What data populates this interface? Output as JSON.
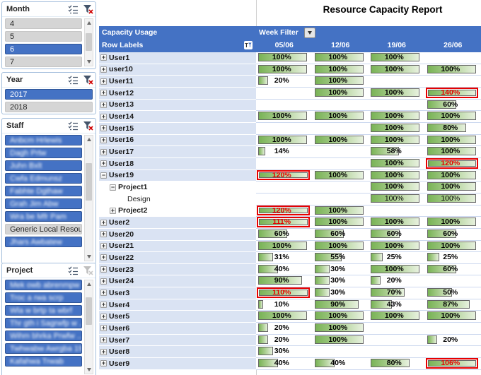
{
  "report": {
    "title": "Resource Capacity Report"
  },
  "slicers": [
    {
      "name": "Month",
      "filter_active": true,
      "has_scrollbar": true,
      "thumb": {
        "top_pct": 18,
        "height_pct": 38
      },
      "items": [
        {
          "label": "4",
          "selected": false,
          "redacted": false
        },
        {
          "label": "5",
          "selected": false,
          "redacted": false
        },
        {
          "label": "6",
          "selected": true,
          "redacted": false
        },
        {
          "label": "7",
          "selected": false,
          "redacted": false
        }
      ]
    },
    {
      "name": "Year",
      "filter_active": true,
      "has_scrollbar": false,
      "items": [
        {
          "label": "2017",
          "selected": true,
          "redacted": false
        },
        {
          "label": "2018",
          "selected": false,
          "redacted": false
        }
      ]
    },
    {
      "name": "Staff",
      "filter_active": true,
      "has_scrollbar": true,
      "thumb": {
        "top_pct": 10,
        "height_pct": 30
      },
      "items": [
        {
          "label": "Anbcm Hrlewis",
          "selected": true,
          "redacted": true
        },
        {
          "label": "Dagh Prtw",
          "selected": true,
          "redacted": true
        },
        {
          "label": "Juhn Bxlt",
          "selected": true,
          "redacted": true
        },
        {
          "label": "Cwfa Edmunsz",
          "selected": true,
          "redacted": true
        },
        {
          "label": "Fabhte Dgthaw",
          "selected": true,
          "redacted": true
        },
        {
          "label": "Grah Jim Abw",
          "selected": true,
          "redacted": true
        },
        {
          "label": "Wra be Mfr Pam",
          "selected": true,
          "redacted": true
        },
        {
          "label": "Generic Local Resou...",
          "selected": false,
          "redacted": false
        },
        {
          "label": "Jhars Awbatew",
          "selected": true,
          "redacted": true
        }
      ]
    },
    {
      "name": "Project",
      "filter_active": false,
      "has_scrollbar": true,
      "thumb": {
        "top_pct": 6,
        "height_pct": 30
      },
      "items": [
        {
          "label": "Mek owb abrenmpw",
          "selected": true,
          "redacted": true
        },
        {
          "label": "Troc a rwa scrp",
          "selected": true,
          "redacted": true
        },
        {
          "label": "Wla w brtp ta wbrf",
          "selected": true,
          "redacted": true
        },
        {
          "label": "Thr gth i Sagrwfp w ...",
          "selected": true,
          "redacted": true
        },
        {
          "label": "Wihm bhrka Prwfw ...",
          "selected": true,
          "redacted": true
        },
        {
          "label": "Twhwabw Awrgba 1994 ...",
          "selected": true,
          "redacted": true
        },
        {
          "label": "Kafahwa Trwab",
          "selected": true,
          "redacted": true
        }
      ]
    }
  ],
  "table": {
    "corner_label": "Capacity Usage",
    "week_filter_label": "Week Filter",
    "row_labels_header": "Row Labels",
    "columns": [
      "05/06",
      "12/06",
      "19/06",
      "26/06"
    ],
    "rows": [
      {
        "label": "User1",
        "level": 0,
        "toggle": "plus",
        "bold": true,
        "values": [
          100,
          100,
          100,
          null
        ]
      },
      {
        "label": "user10",
        "level": 0,
        "toggle": "plus",
        "bold": true,
        "values": [
          100,
          100,
          100,
          100
        ]
      },
      {
        "label": "User11",
        "level": 0,
        "toggle": "plus",
        "bold": true,
        "values": [
          20,
          100,
          null,
          null
        ]
      },
      {
        "label": "User12",
        "level": 0,
        "toggle": "plus",
        "bold": true,
        "values": [
          null,
          100,
          100,
          140
        ]
      },
      {
        "label": "User13",
        "level": 0,
        "toggle": "plus",
        "bold": true,
        "values": [
          null,
          null,
          null,
          60
        ]
      },
      {
        "label": "User14",
        "level": 0,
        "toggle": "plus",
        "bold": true,
        "values": [
          100,
          100,
          100,
          100
        ]
      },
      {
        "label": "User15",
        "level": 0,
        "toggle": "plus",
        "bold": true,
        "values": [
          null,
          null,
          100,
          80
        ]
      },
      {
        "label": "User16",
        "level": 0,
        "toggle": "plus",
        "bold": true,
        "values": [
          100,
          100,
          100,
          100
        ]
      },
      {
        "label": "User17",
        "level": 0,
        "toggle": "plus",
        "bold": true,
        "values": [
          14,
          null,
          58,
          100
        ]
      },
      {
        "label": "User18",
        "level": 0,
        "toggle": "plus",
        "bold": true,
        "values": [
          null,
          null,
          100,
          120
        ]
      },
      {
        "label": "User19",
        "level": 0,
        "toggle": "minus",
        "bold": true,
        "values": [
          120,
          100,
          100,
          100
        ]
      },
      {
        "label": "Project1",
        "level": 1,
        "toggle": "minus",
        "bold": true,
        "values": [
          null,
          null,
          100,
          100
        ]
      },
      {
        "label": "Design",
        "level": 2,
        "toggle": null,
        "bold": false,
        "values": [
          null,
          null,
          100,
          100
        ]
      },
      {
        "label": "Project2",
        "level": 1,
        "toggle": "plus",
        "bold": true,
        "values": [
          120,
          100,
          null,
          null
        ]
      },
      {
        "label": "User2",
        "level": 0,
        "toggle": "plus",
        "bold": true,
        "values": [
          111,
          100,
          100,
          100
        ]
      },
      {
        "label": "User20",
        "level": 0,
        "toggle": "plus",
        "bold": true,
        "values": [
          60,
          60,
          60,
          60
        ]
      },
      {
        "label": "User21",
        "level": 0,
        "toggle": "plus",
        "bold": true,
        "values": [
          100,
          100,
          100,
          100
        ]
      },
      {
        "label": "User22",
        "level": 0,
        "toggle": "plus",
        "bold": true,
        "values": [
          31,
          55,
          25,
          25
        ]
      },
      {
        "label": "User23",
        "level": 0,
        "toggle": "plus",
        "bold": true,
        "values": [
          40,
          30,
          100,
          60
        ]
      },
      {
        "label": "User24",
        "level": 0,
        "toggle": "plus",
        "bold": true,
        "values": [
          90,
          30,
          20,
          null
        ]
      },
      {
        "label": "User3",
        "level": 0,
        "toggle": "plus",
        "bold": true,
        "values": [
          110,
          30,
          70,
          50
        ]
      },
      {
        "label": "User4",
        "level": 0,
        "toggle": "plus",
        "bold": true,
        "values": [
          10,
          90,
          43,
          87
        ]
      },
      {
        "label": "User5",
        "level": 0,
        "toggle": "plus",
        "bold": true,
        "values": [
          100,
          100,
          100,
          100
        ]
      },
      {
        "label": "User6",
        "level": 0,
        "toggle": "plus",
        "bold": true,
        "values": [
          20,
          100,
          null,
          null
        ]
      },
      {
        "label": "User7",
        "level": 0,
        "toggle": "plus",
        "bold": true,
        "values": [
          20,
          100,
          null,
          20
        ]
      },
      {
        "label": "User8",
        "level": 0,
        "toggle": "plus",
        "bold": true,
        "values": [
          30,
          null,
          null,
          null
        ]
      },
      {
        "label": "User9",
        "level": 0,
        "toggle": "plus",
        "bold": true,
        "values": [
          40,
          40,
          80,
          106
        ]
      }
    ],
    "colors": {
      "header_blue": "#4472c4",
      "row_band_blue": "#dae3f3",
      "bar_green_start": "#79b356",
      "bar_green_end": "#e7f1de",
      "overload_red": "#e60000"
    }
  }
}
